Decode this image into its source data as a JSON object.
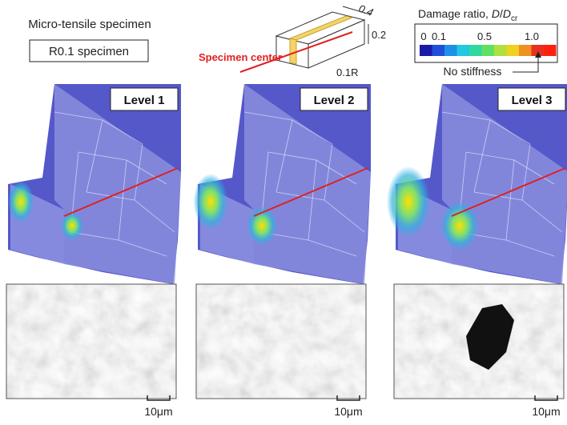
{
  "header": {
    "specimen_title": "Micro-tensile specimen",
    "specimen_box": "R0.1 specimen"
  },
  "schematic": {
    "label": "Specimen center",
    "dims": [
      "0.4",
      "0.2",
      "0.1R"
    ]
  },
  "colorbar": {
    "title": [
      "Damage ratio, ",
      "D",
      "/",
      "D",
      "cr"
    ],
    "ticks": [
      "0",
      "0.1",
      "0.5",
      "1.0"
    ],
    "note": "No stiffness"
  },
  "panels": [
    {
      "level": "Level 1",
      "scale": "10μm"
    },
    {
      "level": "Level 2",
      "scale": "10μm"
    },
    {
      "level": "Level 3",
      "scale": "10μm"
    }
  ]
}
